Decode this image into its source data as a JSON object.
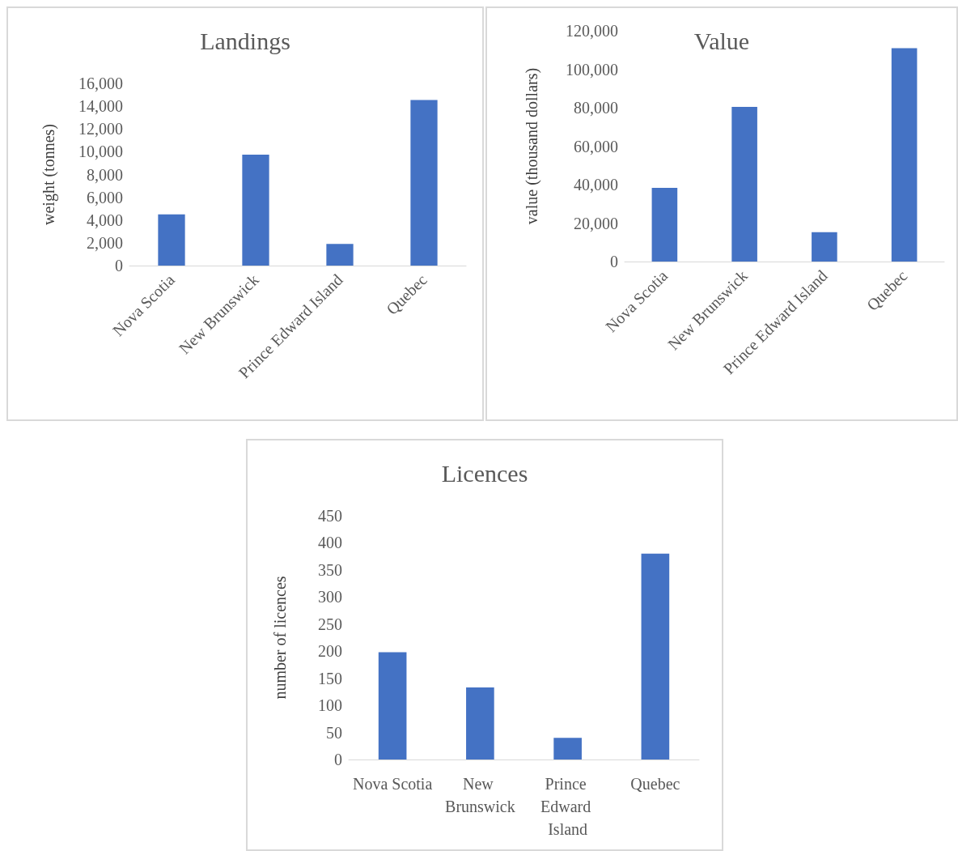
{
  "chart_data": [
    {
      "type": "bar",
      "title": "Landings",
      "ylabel": "weight (tonnes)",
      "categories": [
        "Nova Scotia",
        "New Brunswick",
        "Prince Edward Island",
        "Quebec"
      ],
      "values": [
        4500,
        9750,
        1900,
        14550
      ],
      "color": "#4472c4",
      "ylim": [
        0,
        16000
      ],
      "yticks": [
        0,
        {
          "value": 2000,
          "label": "2,000"
        },
        {
          "value": 4000,
          "label": "4,000"
        },
        {
          "value": 6000,
          "label": "6,000"
        },
        {
          "value": 8000,
          "label": "8,000"
        },
        {
          "value": 10000,
          "label": "10,000"
        },
        {
          "value": 12000,
          "label": "12,000"
        },
        {
          "value": 14000,
          "label": "14,000"
        },
        {
          "value": 16000,
          "label": "16,000"
        }
      ],
      "grid": false
    },
    {
      "type": "bar",
      "title": "Value",
      "ylabel": "value (thousand dollars)",
      "categories": [
        "Nova Scotia",
        "New Brunswick",
        "Prince Edward Island",
        "Quebec"
      ],
      "values": [
        38300,
        80400,
        15300,
        111000
      ],
      "color": "#4472c4",
      "ylim": [
        0,
        120000
      ],
      "yticks": [
        0,
        {
          "value": 20000,
          "label": "20,000"
        },
        {
          "value": 40000,
          "label": "40,000"
        },
        {
          "value": 60000,
          "label": "60,000"
        },
        {
          "value": 80000,
          "label": "80,000"
        },
        {
          "value": 100000,
          "label": "100,000"
        },
        {
          "value": 120000,
          "label": "120,000"
        }
      ],
      "grid": false
    },
    {
      "type": "bar",
      "title": "Licences",
      "ylabel": "number of licences",
      "categories": [
        "Nova Scotia",
        "New Brunswick",
        "Prince Edward Island",
        "Quebec"
      ],
      "values": [
        198,
        133,
        40,
        380
      ],
      "color": "#4472c4",
      "ylim": [
        0,
        450
      ],
      "yticks": [
        0,
        50,
        100,
        150,
        200,
        250,
        300,
        350,
        400,
        450
      ],
      "grid": false
    }
  ]
}
